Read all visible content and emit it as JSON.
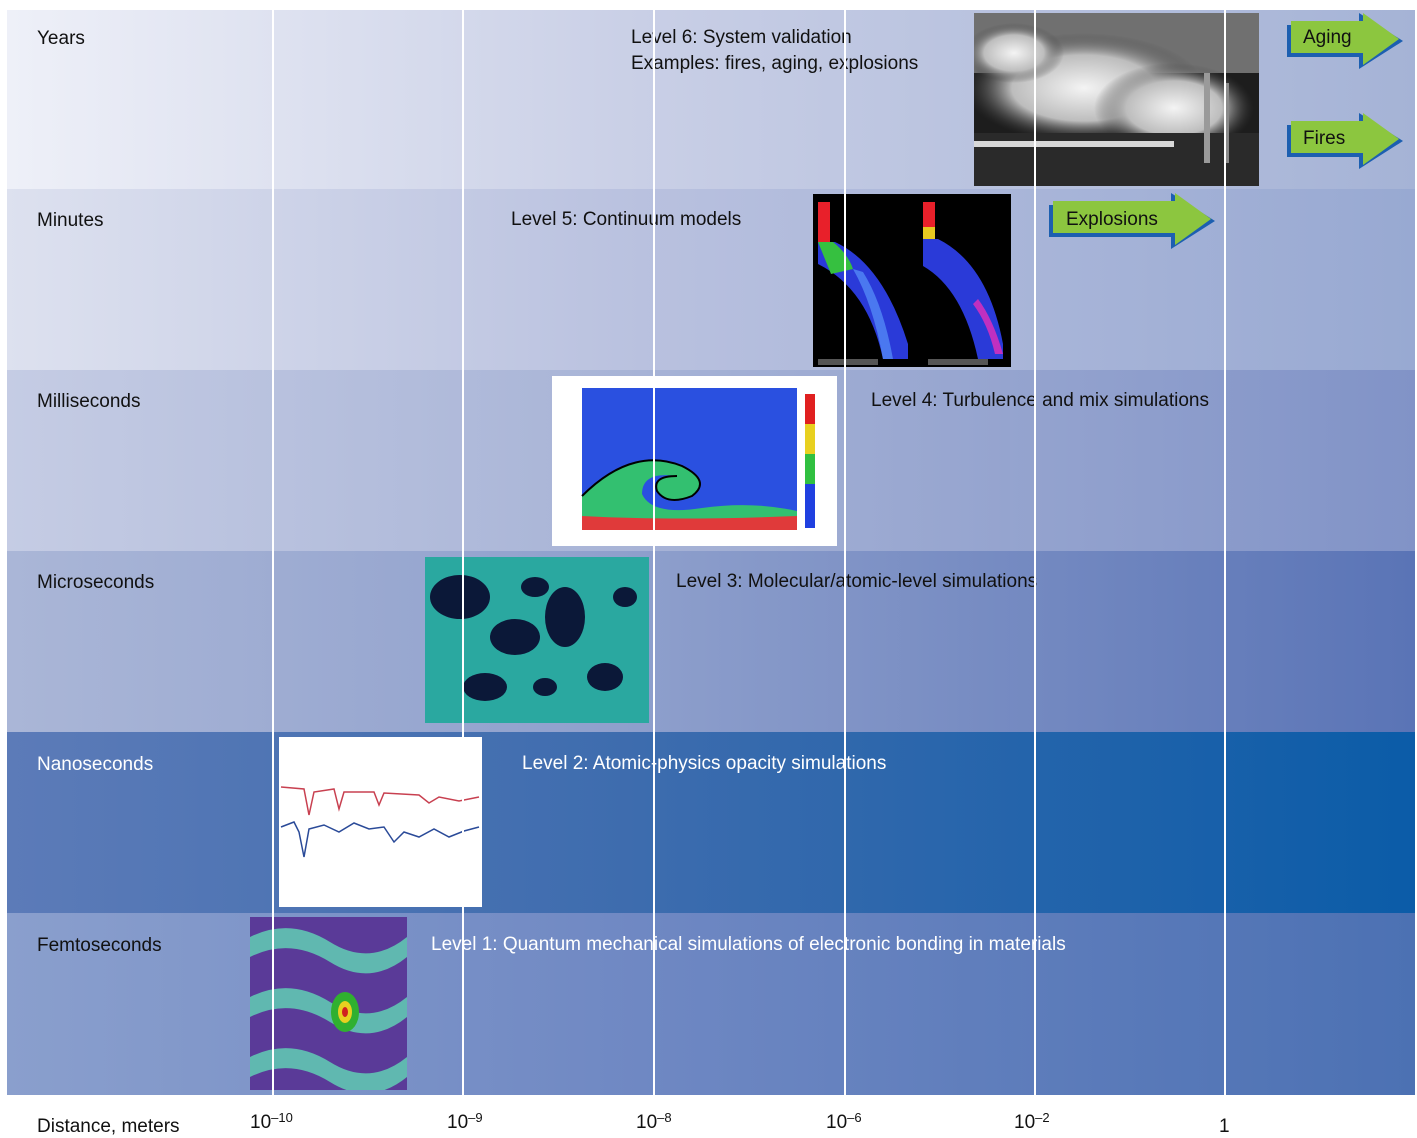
{
  "rows": [
    {
      "label": "Years"
    },
    {
      "label": "Minutes"
    },
    {
      "label": "Milliseconds"
    },
    {
      "label": "Microseconds"
    },
    {
      "label": "Nanoseconds"
    },
    {
      "label": "Femtoseconds"
    }
  ],
  "levels": {
    "l6_line1": "Level 6: System validation",
    "l6_line2": "Examples: fires, aging, explosions",
    "l5": "Level 5: Continuum models",
    "l4": "Level 4: Turbulence and mix simulations",
    "l3": "Level 3: Molecular/atomic-level simulations",
    "l2": "Level 2: Atomic-physics opacity simulations",
    "l1": "Level 1: Quantum mechanical simulations of electronic bonding in materials"
  },
  "arrows": {
    "aging": "Aging",
    "fires": "Fires",
    "explosions": "Explosions"
  },
  "axis": {
    "title": "Distance, meters",
    "ticks": [
      {
        "base": "10",
        "exp": "–10"
      },
      {
        "base": "10",
        "exp": "–9"
      },
      {
        "base": "10",
        "exp": "–8"
      },
      {
        "base": "10",
        "exp": "–6"
      },
      {
        "base": "10",
        "exp": "–2"
      },
      {
        "base": "1",
        "exp": ""
      }
    ]
  },
  "colors": {
    "arrow_fill": "#8cc63f",
    "arrow_edge": "#1c5fb0",
    "nanosecond_band": "#0b5ca8"
  }
}
